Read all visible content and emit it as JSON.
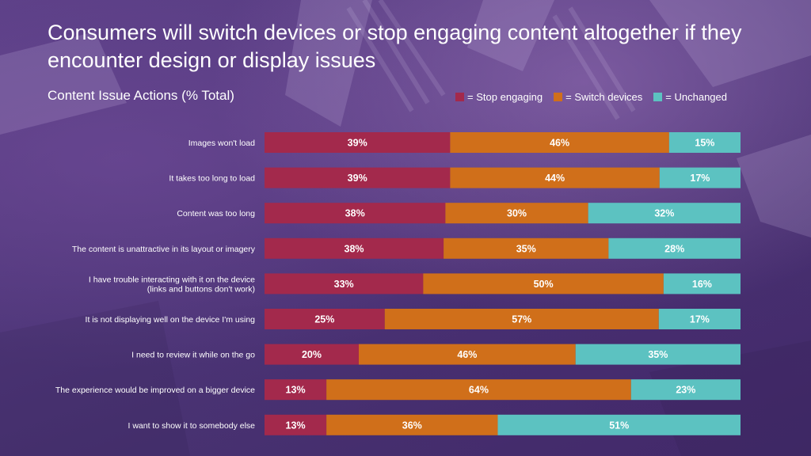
{
  "title": "Consumers will switch devices or stop engaging content altogether if they encounter design or display issues",
  "subtitle": "Content Issue Actions (% Total)",
  "colors": {
    "stop": "#a3294c",
    "switch": "#d06f1a",
    "unchanged": "#5cc2c1"
  },
  "legend": [
    {
      "label": "= Stop engaging",
      "color": "#a3294c"
    },
    {
      "label": "= Switch devices",
      "color": "#d06f1a"
    },
    {
      "label": "= Unchanged",
      "color": "#5cc2c1"
    }
  ],
  "chart_data": {
    "type": "bar",
    "orientation": "horizontal",
    "stacked": true,
    "normalized": true,
    "title": "Content Issue Actions (% Total)",
    "legend_position": "top-right",
    "grid": false,
    "categories": [
      "Images won't load",
      "It takes too long to load",
      "Content was too long",
      "The content is unattractive in its layout or imagery",
      "I have trouble interacting with it on the device\n(links and buttons don't work)",
      "It is not displaying well on the device I'm using",
      "I need to review it while on the go",
      "The experience would be improved on a bigger device",
      "I want to show it to somebody else"
    ],
    "series": [
      {
        "name": "Stop engaging",
        "values": [
          39,
          39,
          38,
          38,
          33,
          25,
          20,
          13,
          13
        ]
      },
      {
        "name": "Switch devices",
        "values": [
          46,
          44,
          30,
          35,
          50,
          57,
          46,
          64,
          36
        ]
      },
      {
        "name": "Unchanged",
        "values": [
          15,
          17,
          32,
          28,
          16,
          17,
          35,
          23,
          51
        ]
      }
    ]
  }
}
